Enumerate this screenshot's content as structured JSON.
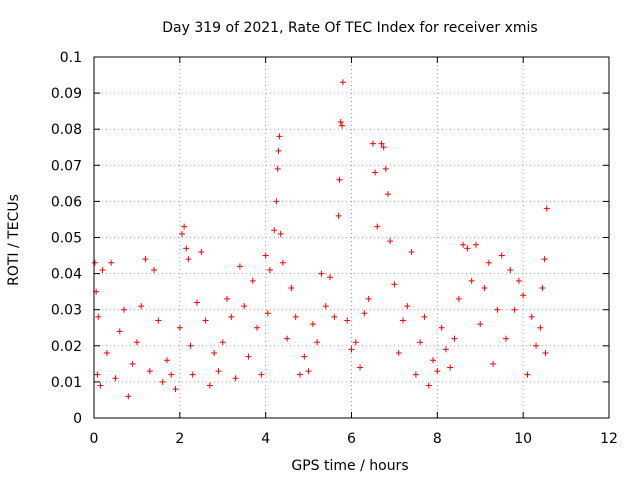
{
  "chart_data": {
    "type": "scatter",
    "title": "Day 319 of 2021, Rate Of TEC Index for receiver xmis",
    "xlabel": "GPS time / hours",
    "ylabel": "ROTI / TECUs",
    "xlim": [
      0,
      12
    ],
    "ylim": [
      0,
      0.1
    ],
    "xticks": [
      0,
      2,
      4,
      6,
      8,
      10,
      12
    ],
    "yticks": [
      0,
      0.01,
      0.02,
      0.03,
      0.04,
      0.05,
      0.06,
      0.07,
      0.08,
      0.09,
      0.1
    ],
    "xtick_labels": [
      "0",
      "2",
      "4",
      "6",
      "8",
      "10",
      "12"
    ],
    "ytick_labels": [
      "0",
      "0.01",
      "0.02",
      "0.03",
      "0.04",
      "0.05",
      "0.06",
      "0.07",
      "0.08",
      "0.09",
      "0.1"
    ],
    "grid": true,
    "marker": "+",
    "color": "#ff0000",
    "series": [
      {
        "name": "",
        "x": [
          0.02,
          0.05,
          0.08,
          0.1,
          0.15,
          0.2,
          0.3,
          0.4,
          0.5,
          0.6,
          0.7,
          0.8,
          0.9,
          1.0,
          1.1,
          1.2,
          1.3,
          1.4,
          1.5,
          1.6,
          1.7,
          1.8,
          1.9,
          2.0,
          2.05,
          2.1,
          2.15,
          2.2,
          2.25,
          2.3,
          2.4,
          2.5,
          2.6,
          2.7,
          2.8,
          2.9,
          3.0,
          3.1,
          3.2,
          3.3,
          3.4,
          3.5,
          3.6,
          3.7,
          3.8,
          3.9,
          4.0,
          4.05,
          4.1,
          4.2,
          4.25,
          4.28,
          4.3,
          4.32,
          4.35,
          4.4,
          4.5,
          4.6,
          4.7,
          4.8,
          4.9,
          5.0,
          5.1,
          5.2,
          5.3,
          5.4,
          5.5,
          5.6,
          5.7,
          5.72,
          5.75,
          5.78,
          5.8,
          5.9,
          6.0,
          6.1,
          6.2,
          6.3,
          6.4,
          6.5,
          6.55,
          6.6,
          6.7,
          6.75,
          6.8,
          6.85,
          6.9,
          7.0,
          7.1,
          7.2,
          7.3,
          7.4,
          7.5,
          7.6,
          7.7,
          7.8,
          7.9,
          8.0,
          8.1,
          8.2,
          8.3,
          8.4,
          8.5,
          8.6,
          8.7,
          8.8,
          8.9,
          9.0,
          9.1,
          9.2,
          9.3,
          9.4,
          9.5,
          9.6,
          9.7,
          9.8,
          9.9,
          10.0,
          10.1,
          10.2,
          10.3,
          10.4,
          10.45,
          10.5,
          10.52,
          10.55
        ],
        "y": [
          0.043,
          0.035,
          0.012,
          0.028,
          0.009,
          0.041,
          0.018,
          0.043,
          0.011,
          0.024,
          0.03,
          0.006,
          0.015,
          0.021,
          0.031,
          0.044,
          0.013,
          0.041,
          0.027,
          0.01,
          0.016,
          0.012,
          0.008,
          0.025,
          0.051,
          0.053,
          0.047,
          0.044,
          0.02,
          0.012,
          0.032,
          0.046,
          0.027,
          0.009,
          0.018,
          0.013,
          0.021,
          0.033,
          0.028,
          0.011,
          0.042,
          0.031,
          0.017,
          0.038,
          0.025,
          0.012,
          0.045,
          0.029,
          0.041,
          0.052,
          0.06,
          0.069,
          0.074,
          0.078,
          0.051,
          0.043,
          0.022,
          0.036,
          0.028,
          0.012,
          0.017,
          0.013,
          0.026,
          0.021,
          0.04,
          0.031,
          0.039,
          0.028,
          0.056,
          0.066,
          0.082,
          0.081,
          0.093,
          0.027,
          0.019,
          0.021,
          0.014,
          0.029,
          0.033,
          0.076,
          0.068,
          0.053,
          0.076,
          0.075,
          0.069,
          0.062,
          0.049,
          0.037,
          0.018,
          0.027,
          0.031,
          0.046,
          0.012,
          0.021,
          0.028,
          0.009,
          0.016,
          0.013,
          0.025,
          0.019,
          0.014,
          0.022,
          0.033,
          0.048,
          0.047,
          0.038,
          0.048,
          0.026,
          0.036,
          0.043,
          0.015,
          0.03,
          0.045,
          0.022,
          0.041,
          0.03,
          0.038,
          0.034,
          0.012,
          0.028,
          0.02,
          0.025,
          0.036,
          0.044,
          0.018,
          0.058
        ]
      }
    ]
  }
}
